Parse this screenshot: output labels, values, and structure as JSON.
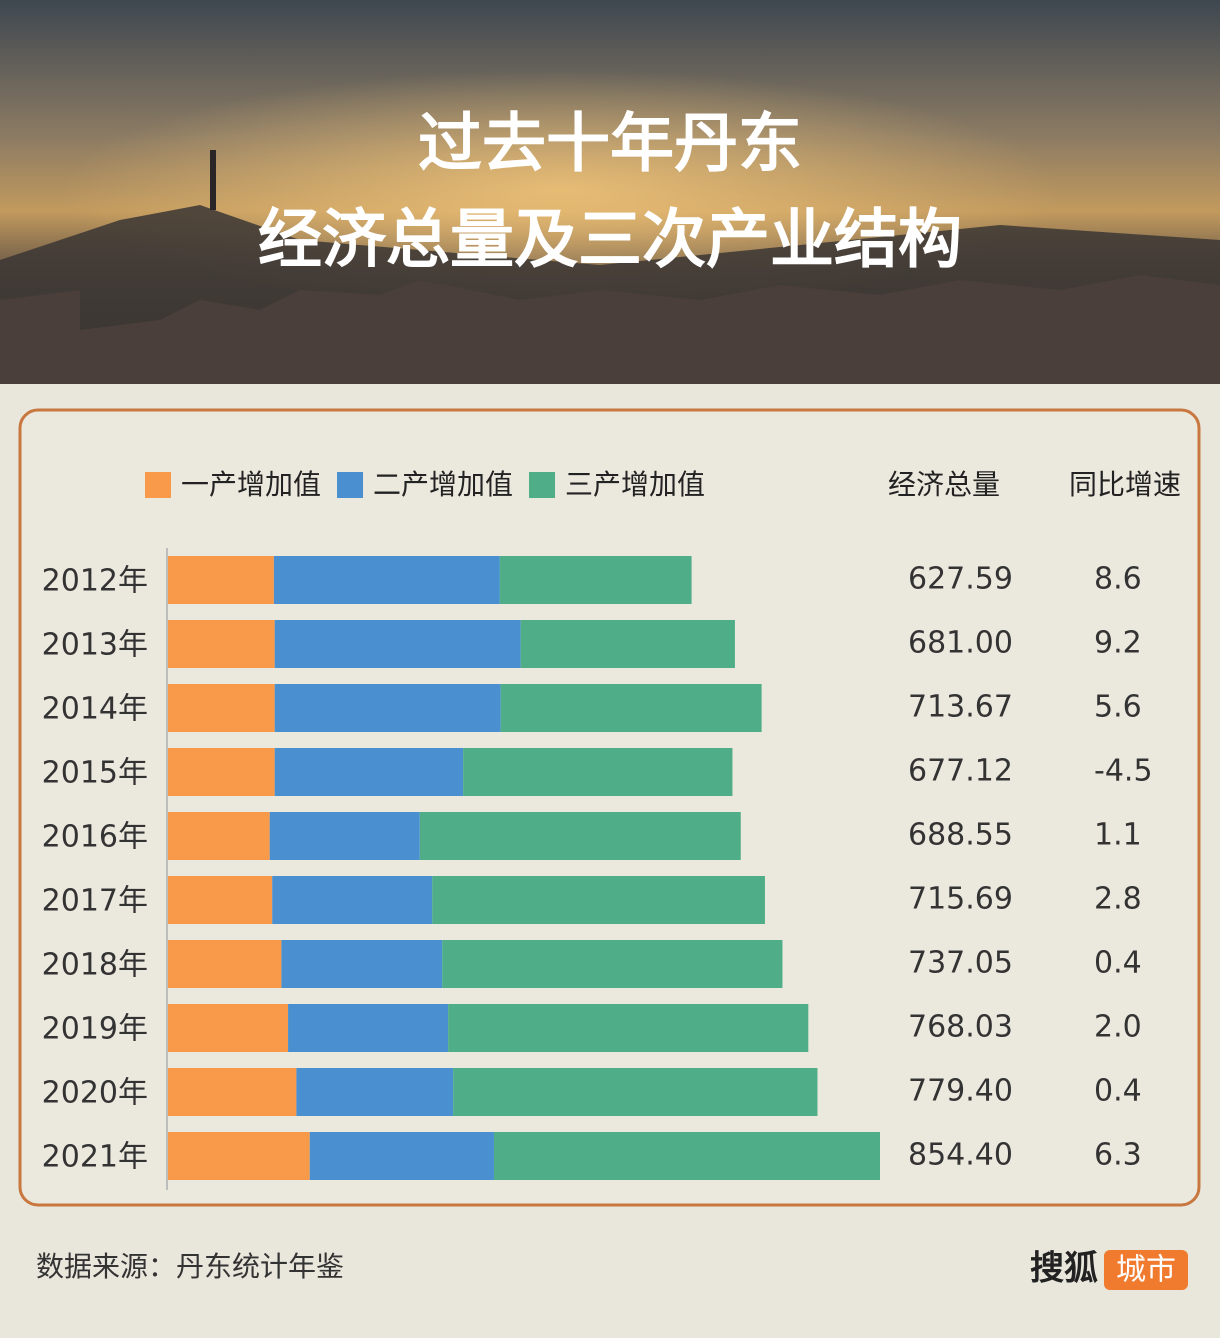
{
  "chart_data": {
    "type": "stacked-bar-horizontal",
    "title": "过去十年丹东",
    "subtitle": "经济总量及三次产业结构",
    "categories": [
      "2012年",
      "2013年",
      "2014年",
      "2015年",
      "2016年",
      "2017年",
      "2018年",
      "2019年",
      "2020年",
      "2021年"
    ],
    "series": [
      {
        "name": "一产增加值",
        "color": "#f99a4b",
        "values": [
          127,
          128,
          128,
          128,
          122,
          125,
          136,
          144,
          154,
          170
        ]
      },
      {
        "name": "二产增加值",
        "color": "#4a90d0",
        "values": [
          271,
          295,
          271,
          226,
          180,
          192,
          193,
          192,
          188,
          221
        ]
      },
      {
        "name": "三产增加值",
        "color": "#4fae88",
        "values": [
          230,
          257,
          313,
          323,
          385,
          399,
          408,
          432,
          437,
          463
        ]
      }
    ],
    "columns": [
      {
        "name": "经济总量",
        "values": [
          627.59,
          681,
          713.67,
          677.12,
          688.55,
          715.69,
          737.05,
          768.03,
          779.4,
          854.4
        ],
        "value_labels": [
          "627.59",
          "681.00",
          "713.67",
          "677.12",
          "688.55",
          "715.69",
          "737.05",
          "768.03",
          "779.40",
          "854.40"
        ]
      },
      {
        "name": "同比增速",
        "values": [
          8.6,
          9.2,
          5.6,
          -4.5,
          1.1,
          2.8,
          0.4,
          2,
          0.4,
          6.3
        ],
        "value_labels": [
          "8.6",
          "9.2",
          "5.6",
          "-4.5",
          "1.1",
          "2.8",
          "0.4",
          "2.0",
          "0.4",
          "6.3"
        ]
      }
    ],
    "source": "数据来源：丹东统计年鉴",
    "brand": "搜狐",
    "brand_tag": "城市"
  }
}
